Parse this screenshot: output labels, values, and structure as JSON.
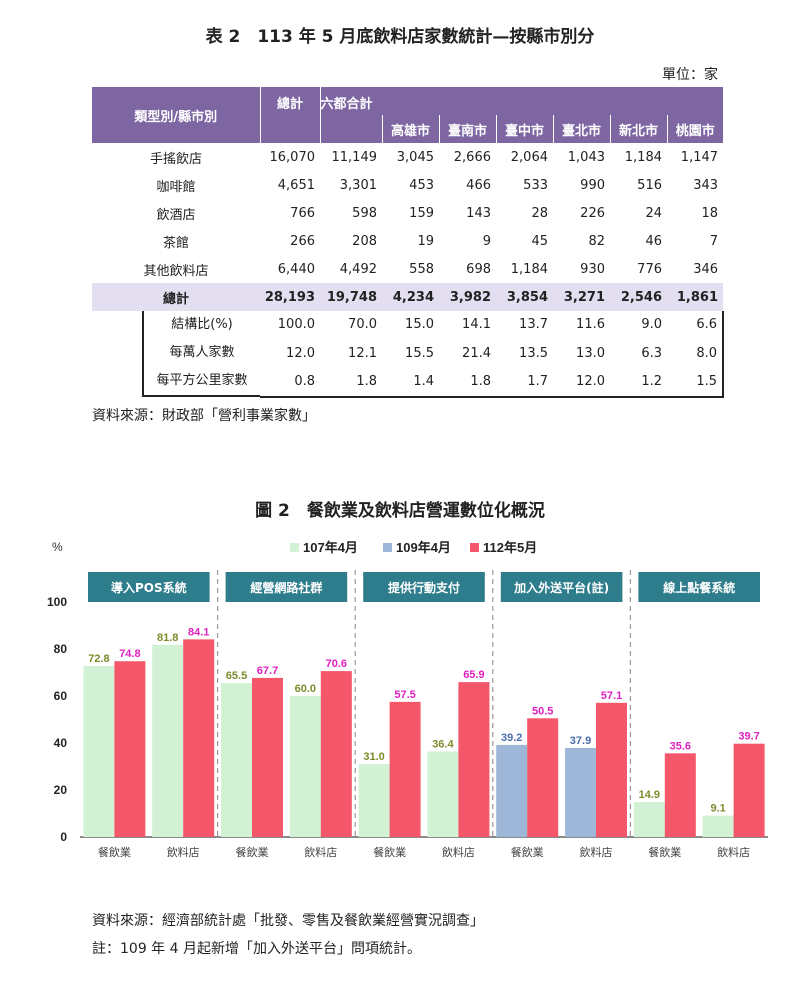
{
  "table": {
    "title": "表 2　113 年 5 月底飲料店家數統計—按縣市別分",
    "unit": "單位：家",
    "corner_header": "類型別/縣市別",
    "total_header": "總計",
    "group_header": "六都合計",
    "city_headers": [
      "高雄市",
      "臺南市",
      "臺中市",
      "臺北市",
      "新北市",
      "桃園市"
    ],
    "rows": [
      {
        "label": "手搖飲店",
        "values": [
          "16,070",
          "11,149",
          "3,045",
          "2,666",
          "2,064",
          "1,043",
          "1,184",
          "1,147"
        ]
      },
      {
        "label": "咖啡館",
        "values": [
          "4,651",
          "3,301",
          "453",
          "466",
          "533",
          "990",
          "516",
          "343"
        ]
      },
      {
        "label": "飲酒店",
        "values": [
          "766",
          "598",
          "159",
          "143",
          "28",
          "226",
          "24",
          "18"
        ]
      },
      {
        "label": "茶館",
        "values": [
          "266",
          "208",
          "19",
          "9",
          "45",
          "82",
          "46",
          "7"
        ]
      },
      {
        "label": "其他飲料店",
        "values": [
          "6,440",
          "4,492",
          "558",
          "698",
          "1,184",
          "930",
          "776",
          "346"
        ]
      }
    ],
    "total_row": {
      "label": "總計",
      "values": [
        "28,193",
        "19,748",
        "4,234",
        "3,982",
        "3,854",
        "3,271",
        "2,546",
        "1,861"
      ]
    },
    "stat_rows": [
      {
        "label": "結構比(%)",
        "values": [
          "100.0",
          "70.0",
          "15.0",
          "14.1",
          "13.7",
          "11.6",
          "9.0",
          "6.6"
        ]
      },
      {
        "label": "每萬人家數",
        "values": [
          "12.0",
          "12.1",
          "15.5",
          "21.4",
          "13.5",
          "13.0",
          "6.3",
          "8.0"
        ]
      },
      {
        "label": "每平方公里家數",
        "values": [
          "0.8",
          "1.8",
          "1.4",
          "1.8",
          "1.7",
          "12.0",
          "1.2",
          "1.5"
        ]
      }
    ],
    "source": "資料來源：財政部「營利事業家數」"
  },
  "chart": {
    "title": "圖 2　餐飲業及飲料店營運數位化概況",
    "source": "資料來源：經濟部統計處「批發、零售及餐飲業經營實況調查」",
    "note": "註：109 年 4 月起新增「加入外送平台」問項統計。"
  },
  "colors": {
    "header_purple": "#7e66a3",
    "total_row_bg": "#e3def0",
    "panel_teal": "#2e7d8c",
    "green_107": "#d3f2d5",
    "blue_109": "#9eb6d8",
    "red_112": "#f4566a",
    "label_green": "#7f8a2a",
    "label_blue": "#4a6ea8",
    "label_magenta": "#e020c0"
  },
  "chart_data": {
    "type": "bar",
    "ylabel": "%",
    "ylim": [
      0,
      100
    ],
    "yticks": [
      0,
      20,
      40,
      60,
      80,
      100
    ],
    "legend": [
      {
        "name": "107年4月",
        "color": "#d3f2d5"
      },
      {
        "name": "109年4月",
        "color": "#9eb6d8"
      },
      {
        "name": "112年5月",
        "color": "#f4566a"
      }
    ],
    "legend_position": "top-center",
    "groups": [
      {
        "name": "導入POS系統",
        "categories": [
          {
            "name": "餐飲業",
            "bars": [
              {
                "series": "107年4月",
                "value": 72.8,
                "label": "72.8"
              },
              {
                "series": "112年5月",
                "value": 74.8,
                "label": "74.8"
              }
            ]
          },
          {
            "name": "飲料店",
            "bars": [
              {
                "series": "107年4月",
                "value": 81.8,
                "label": "81.8"
              },
              {
                "series": "112年5月",
                "value": 84.1,
                "label": "84.1"
              }
            ]
          }
        ]
      },
      {
        "name": "經營網路社群",
        "categories": [
          {
            "name": "餐飲業",
            "bars": [
              {
                "series": "107年4月",
                "value": 65.5,
                "label": "65.5"
              },
              {
                "series": "112年5月",
                "value": 67.7,
                "label": "67.7"
              }
            ]
          },
          {
            "name": "飲料店",
            "bars": [
              {
                "series": "107年4月",
                "value": 60.0,
                "label": "60.0"
              },
              {
                "series": "112年5月",
                "value": 70.6,
                "label": "70.6"
              }
            ]
          }
        ]
      },
      {
        "name": "提供行動支付",
        "categories": [
          {
            "name": "餐飲業",
            "bars": [
              {
                "series": "107年4月",
                "value": 31.0,
                "label": "31.0"
              },
              {
                "series": "112年5月",
                "value": 57.5,
                "label": "57.5"
              }
            ]
          },
          {
            "name": "飲料店",
            "bars": [
              {
                "series": "107年4月",
                "value": 36.4,
                "label": "36.4"
              },
              {
                "series": "112年5月",
                "value": 65.9,
                "label": "65.9"
              }
            ]
          }
        ]
      },
      {
        "name": "加入外送平台(註)",
        "categories": [
          {
            "name": "餐飲業",
            "bars": [
              {
                "series": "109年4月",
                "value": 39.2,
                "label": "39.2"
              },
              {
                "series": "112年5月",
                "value": 50.5,
                "label": "50.5"
              }
            ]
          },
          {
            "name": "飲料店",
            "bars": [
              {
                "series": "109年4月",
                "value": 37.9,
                "label": "37.9"
              },
              {
                "series": "112年5月",
                "value": 57.1,
                "label": "57.1"
              }
            ]
          }
        ]
      },
      {
        "name": "線上點餐系統",
        "categories": [
          {
            "name": "餐飲業",
            "bars": [
              {
                "series": "107年4月",
                "value": 14.9,
                "label": "14.9"
              },
              {
                "series": "112年5月",
                "value": 35.6,
                "label": "35.6"
              }
            ]
          },
          {
            "name": "飲料店",
            "bars": [
              {
                "series": "107年4月",
                "value": 9.1,
                "label": "9.1"
              },
              {
                "series": "112年5月",
                "value": 39.7,
                "label": "39.7"
              }
            ]
          }
        ]
      }
    ]
  }
}
